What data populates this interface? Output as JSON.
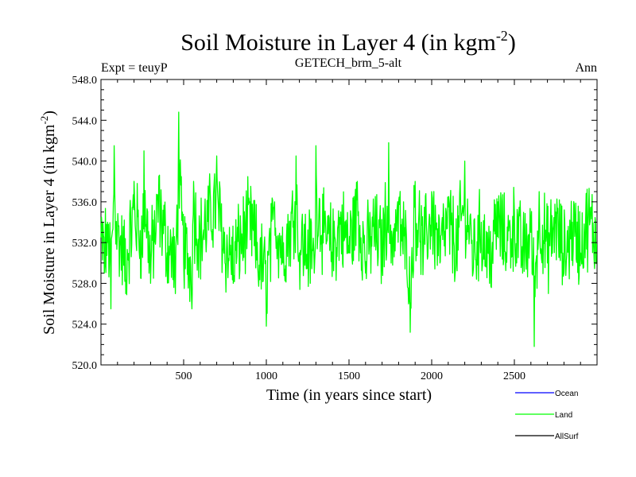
{
  "chart_data": {
    "type": "line",
    "title": "Soil Moisture in Layer 4 (in kgm",
    "title_sup": "-2",
    "title_tail": ")",
    "subtitle_left": "Expt = teuyP",
    "subtitle_center": "GETECH_brm_5-alt",
    "subtitle_right": "Ann",
    "xlabel": "Time (in years since start)",
    "ylabel": "Soil Moisture in Layer 4 (in kgm",
    "ylabel_sup": "-2",
    "ylabel_tail": ")",
    "xlim": [
      0,
      3000
    ],
    "ylim": [
      520,
      548
    ],
    "x_ticks": [
      500,
      1000,
      1500,
      2000,
      2500
    ],
    "x_tick_labels": [
      "500",
      "1000",
      "1500",
      "2000",
      "2500"
    ],
    "y_ticks": [
      520,
      524,
      528,
      532,
      536,
      540,
      544,
      548
    ],
    "y_tick_labels": [
      "520.0",
      "524.0",
      "528.0",
      "532.0",
      "536.0",
      "540.0",
      "544.0",
      "548.0"
    ],
    "grid": false,
    "legend_position": "bottom-right",
    "series": [
      {
        "name": "Ocean",
        "color": "#0000ff",
        "values": []
      },
      {
        "name": "Land",
        "color": "#00ff00",
        "x": [
          0,
          20,
          40,
          60,
          80,
          100,
          150,
          200,
          250,
          260,
          300,
          350,
          400,
          450,
          470,
          500,
          550,
          560,
          600,
          700,
          750,
          800,
          900,
          950,
          1000,
          1050,
          1100,
          1150,
          1180,
          1200,
          1290,
          1300,
          1350,
          1400,
          1450,
          1500,
          1550,
          1600,
          1650,
          1700,
          1740,
          1750,
          1800,
          1850,
          1870,
          1900,
          1950,
          2000,
          2050,
          2100,
          2150,
          2200,
          2250,
          2300,
          2350,
          2400,
          2450,
          2500,
          2550,
          2600,
          2620,
          2650,
          2700,
          2750,
          2800,
          2850,
          2900,
          2950,
          2999
        ],
        "values": [
          532.5,
          529.0,
          534.0,
          525.5,
          541.5,
          533.0,
          527.0,
          538.0,
          531.0,
          541.0,
          528.0,
          538.5,
          531.0,
          527.0,
          544.8,
          530.0,
          525.5,
          538.0,
          532.0,
          540.5,
          530.0,
          528.0,
          536.0,
          529.0,
          523.8,
          536.0,
          530.0,
          535.0,
          540.5,
          531.0,
          529.0,
          541.5,
          533.0,
          530.0,
          535.0,
          531.0,
          538.0,
          529.0,
          534.0,
          530.0,
          541.8,
          532.0,
          536.0,
          529.0,
          523.2,
          538.0,
          531.0,
          537.0,
          530.0,
          535.5,
          531.0,
          540.0,
          529.0,
          534.0,
          528.0,
          536.0,
          531.0,
          535.0,
          529.0,
          533.0,
          521.8,
          537.0,
          530.0,
          535.0,
          529.0,
          534.0,
          531.0,
          536.0,
          532.0
        ]
      },
      {
        "name": "AllSurf",
        "color": "#000000",
        "values": []
      }
    ]
  }
}
